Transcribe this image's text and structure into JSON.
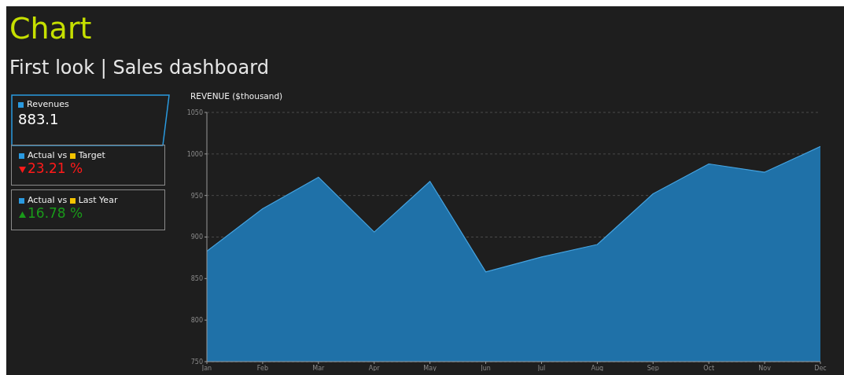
{
  "chart_data": [
    {
      "type": "area",
      "title": "Chart",
      "subtitle": "First look | Sales dashboard",
      "ylabel": "REVENUE ($thousand)",
      "categories": [
        "Jan",
        "Feb",
        "Mar",
        "Apr",
        "May",
        "Jun",
        "Jul",
        "Aug",
        "Sep",
        "Oct",
        "Nov",
        "Dec"
      ],
      "values": [
        883,
        934,
        972,
        906,
        967,
        858,
        876,
        891,
        952,
        988,
        978,
        1009
      ],
      "color": "#1f71a8",
      "ylim": [
        750,
        1050
      ],
      "yticks": [
        750,
        800,
        850,
        900,
        950,
        1000,
        1050
      ],
      "grid": "y",
      "legend": false
    },
    {
      "type": "other",
      "annotations": [
        "Revenues",
        "883.1",
        "Actual vs",
        "Target",
        "23.21 %",
        "Actual vs",
        "Last Year",
        "16.78 %"
      ]
    }
  ]
}
